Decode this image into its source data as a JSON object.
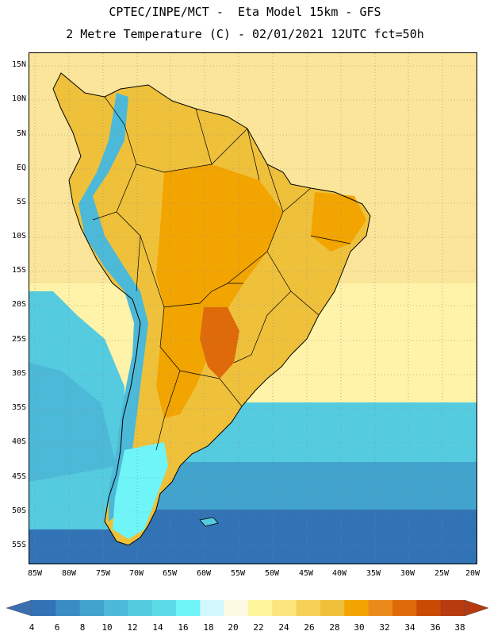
{
  "header": {
    "title_line1": "CPTEC/INPE/MCT -  Eta Model 15km - GFS",
    "title_line2": "2 Metre Temperature (C) - 02/01/2021 12UTC fct=50h"
  },
  "axes": {
    "lat_labels": [
      "15N",
      "10N",
      "5N",
      "EQ",
      "5S",
      "10S",
      "15S",
      "20S",
      "25S",
      "30S",
      "35S",
      "40S",
      "45S",
      "50S",
      "55S"
    ],
    "lon_labels": [
      "85W",
      "80W",
      "75W",
      "70W",
      "65W",
      "60W",
      "55W",
      "50W",
      "45W",
      "40W",
      "35W",
      "30W",
      "25W",
      "20W"
    ]
  },
  "legend": {
    "values": [
      "4",
      "6",
      "8",
      "10",
      "12",
      "14",
      "16",
      "18",
      "20",
      "22",
      "24",
      "26",
      "28",
      "30",
      "32",
      "34",
      "36",
      "38"
    ],
    "colors": [
      "#3273b5",
      "#3a8cc4",
      "#42a3cd",
      "#4cb9d8",
      "#55cbe0",
      "#5ddbe8",
      "#6ff5f8",
      "#d2f7fc",
      "#fef9e3",
      "#fef49a",
      "#fbe57c",
      "#f5d155",
      "#efc13b",
      "#f2a400",
      "#ea8a1c",
      "#df6a0a",
      "#c94a05",
      "#b83a0f"
    ],
    "end_colors": {
      "low": "#3a6fb0",
      "high": "#b5380e"
    }
  },
  "map": {
    "ocean_colors": {
      "tropical": "#fbe59a",
      "subtropical": "#fef3a8",
      "midlat": "#55cbe0",
      "south": "#42a3cd",
      "deep_south": "#3273b5"
    },
    "land_colors": {
      "hot": "#f2a400",
      "warm": "#efc13b",
      "hottest": "#df6a0a",
      "andes": "#4cb9d8",
      "patagonia": "#6ff5f8"
    },
    "boundary_color": "#000000",
    "grid_color": "#888888"
  }
}
